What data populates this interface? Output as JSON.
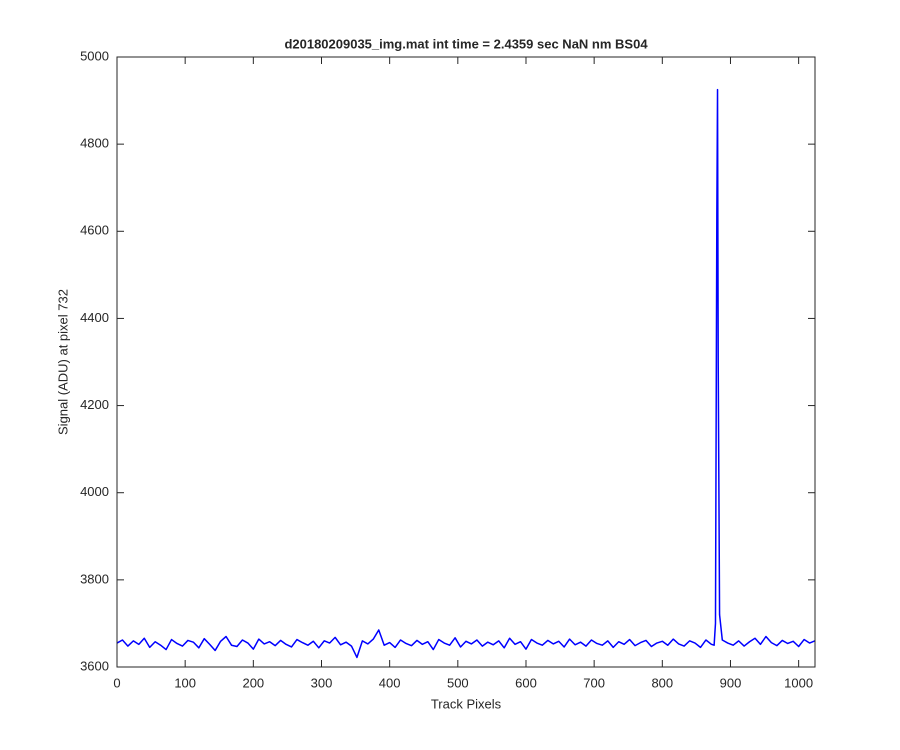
{
  "chart_data": {
    "type": "line",
    "title": "d20180209035_img.mat int time = 2.4359 sec  NaN nm BS04",
    "x_label": "Track Pixels",
    "y_label": "Signal (ADU) at pixel 732",
    "x": [
      0,
      8,
      16,
      24,
      32,
      40,
      48,
      56,
      64,
      72,
      80,
      88,
      96,
      104,
      112,
      120,
      128,
      136,
      144,
      152,
      160,
      168,
      176,
      184,
      192,
      200,
      208,
      216,
      224,
      232,
      240,
      248,
      256,
      264,
      272,
      280,
      288,
      296,
      304,
      312,
      320,
      328,
      336,
      344,
      352,
      360,
      368,
      376,
      384,
      392,
      400,
      408,
      416,
      424,
      432,
      440,
      448,
      456,
      464,
      472,
      480,
      488,
      496,
      504,
      512,
      520,
      528,
      536,
      544,
      552,
      560,
      568,
      576,
      584,
      592,
      600,
      608,
      616,
      624,
      632,
      640,
      648,
      656,
      664,
      672,
      680,
      688,
      696,
      704,
      712,
      720,
      728,
      736,
      744,
      752,
      760,
      768,
      776,
      784,
      792,
      800,
      808,
      816,
      824,
      832,
      840,
      848,
      856,
      864,
      872,
      876,
      878,
      880,
      881,
      882,
      884,
      888,
      896,
      904,
      912,
      920,
      928,
      936,
      944,
      952,
      960,
      968,
      976,
      984,
      992,
      1000,
      1008,
      1016,
      1024
    ],
    "series": [
      {
        "color": "#0000ff",
        "values": [
          3655,
          3662,
          3648,
          3660,
          3652,
          3666,
          3645,
          3658,
          3650,
          3640,
          3663,
          3654,
          3648,
          3661,
          3657,
          3644,
          3665,
          3652,
          3638,
          3659,
          3670,
          3650,
          3647,
          3662,
          3655,
          3641,
          3664,
          3653,
          3658,
          3649,
          3661,
          3652,
          3646,
          3663,
          3656,
          3650,
          3659,
          3644,
          3660,
          3655,
          3668,
          3651,
          3657,
          3648,
          3622,
          3660,
          3653,
          3664,
          3685,
          3650,
          3656,
          3645,
          3662,
          3654,
          3649,
          3661,
          3652,
          3658,
          3640,
          3663,
          3655,
          3650,
          3667,
          3646,
          3659,
          3653,
          3662,
          3648,
          3657,
          3651,
          3660,
          3644,
          3666,
          3652,
          3658,
          3641,
          3663,
          3655,
          3650,
          3661,
          3653,
          3659,
          3646,
          3664,
          3651,
          3657,
          3648,
          3662,
          3654,
          3650,
          3660,
          3645,
          3658,
          3652,
          3663,
          3649,
          3656,
          3661,
          3647,
          3655,
          3659,
          3650,
          3664,
          3653,
          3648,
          3660,
          3655,
          3645,
          3662,
          3652,
          3650,
          3700,
          4640,
          4925,
          4300,
          3720,
          3662,
          3655,
          3650,
          3660,
          3648,
          3658,
          3666,
          3652,
          3670,
          3656,
          3649,
          3661,
          3654,
          3659,
          3647,
          3663,
          3655,
          3660
        ]
      }
    ],
    "xlim": [
      0,
      1024
    ],
    "ylim": [
      3600,
      5000
    ],
    "xticks": [
      0,
      100,
      200,
      300,
      400,
      500,
      600,
      700,
      800,
      900,
      1000
    ],
    "yticks": [
      3600,
      3800,
      4000,
      4200,
      4400,
      4600,
      4800,
      5000
    ]
  }
}
